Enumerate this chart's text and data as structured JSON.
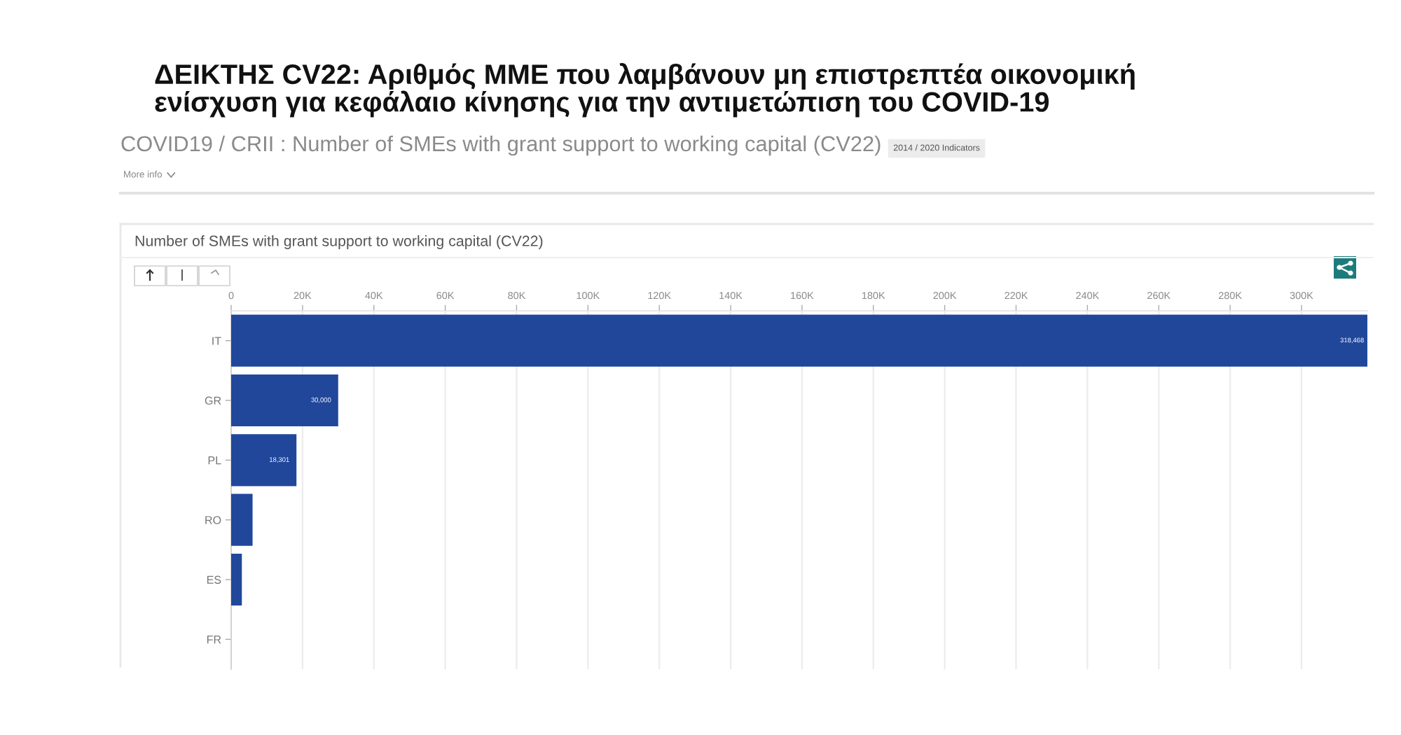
{
  "chart_data": {
    "type": "bar",
    "orientation": "horizontal",
    "title": "ΔΕΙΚΤΗΣ CV22: Αριθμός ΜΜΕ που λαμβάνουν μη επιστρεπτέα οικονομική\nενίσχυση για κεφάλαιο κίνησης για την αντιμετώπιση του COVID-19",
    "subtitle": "COVID19 / CRII : Number of SMEs with grant support to working capital (CV22)",
    "annotations": [
      "2014 / 2020 Indicators",
      "More info",
      "Number of SMEs with grant support to working capital (CV22)"
    ],
    "categories": [
      "IT",
      "GR",
      "PL",
      "RO",
      "ES",
      "FR"
    ],
    "values": [
      318468,
      30000,
      18301,
      6000,
      3000,
      0
    ],
    "value_labels": [
      "318,468",
      "30,000",
      "18,301",
      null,
      null,
      null
    ],
    "color": "#21479b",
    "xlim": [
      0,
      318468
    ],
    "xticks": [
      0,
      {
        "value": 20000,
        "label": "20K"
      },
      {
        "value": 40000,
        "label": "40K"
      },
      {
        "value": 60000,
        "label": "60K"
      },
      {
        "value": 80000,
        "label": "80K"
      },
      {
        "value": 100000,
        "label": "100K"
      },
      {
        "value": 120000,
        "label": "120K"
      },
      {
        "value": 140000,
        "label": "140K"
      },
      {
        "value": 160000,
        "label": "160K"
      },
      {
        "value": 180000,
        "label": "180K"
      },
      {
        "value": 200000,
        "label": "200K"
      },
      {
        "value": 220000,
        "label": "220K"
      },
      {
        "value": 240000,
        "label": "240K"
      },
      {
        "value": 260000,
        "label": "260K"
      },
      {
        "value": 280000,
        "label": "280K"
      },
      {
        "value": 300000,
        "label": "300K"
      }
    ],
    "grid": "x"
  }
}
